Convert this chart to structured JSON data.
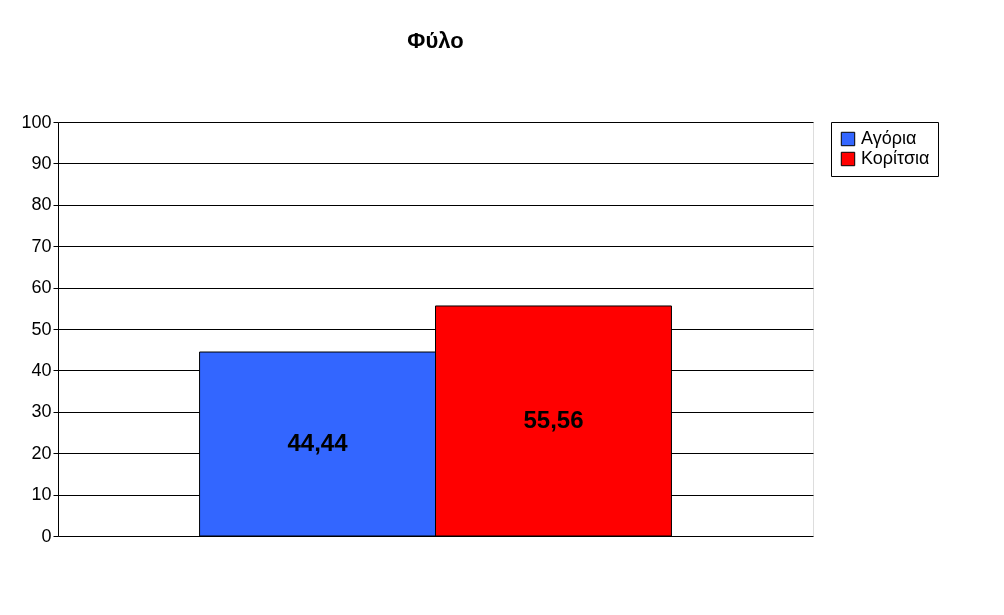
{
  "chart_data": {
    "type": "bar",
    "title": "Φύλο",
    "categories": [
      null
    ],
    "series": [
      {
        "name": "Αγόρια",
        "color": "#3366ff",
        "values": [
          44.44
        ],
        "value_labels": [
          "44,44"
        ]
      },
      {
        "name": "Κορίτσια",
        "color": "#ff0000",
        "values": [
          55.56
        ],
        "value_labels": [
          "55,56"
        ]
      }
    ],
    "ylim": [
      0,
      100
    ],
    "yticks": [
      0,
      10,
      20,
      30,
      40,
      50,
      60,
      70,
      80,
      90,
      100
    ],
    "grid": "y",
    "legend": "right",
    "tick_labels": "y"
  }
}
